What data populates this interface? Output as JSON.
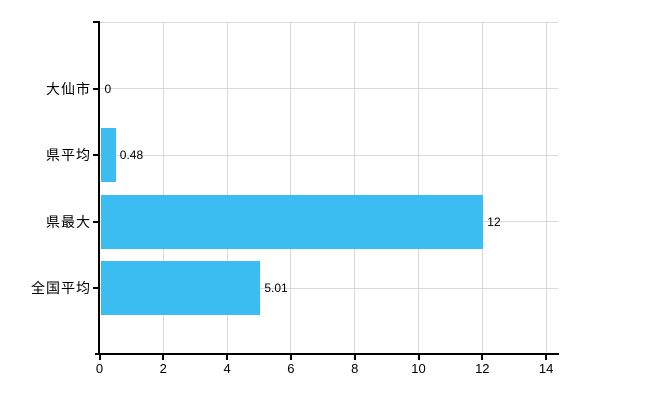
{
  "chart_data": {
    "type": "bar",
    "orientation": "horizontal",
    "title": "",
    "xlabel": "",
    "ylabel": "",
    "categories": [
      "大仙市",
      "県平均",
      "県最大",
      "全国平均"
    ],
    "values": [
      0,
      0.48,
      12,
      5.01
    ],
    "value_labels": [
      "0",
      "0.48",
      "12",
      "5.01"
    ],
    "x_ticks": [
      0,
      2,
      4,
      6,
      8,
      10,
      12,
      14
    ],
    "x_tick_labels": [
      "0",
      "2",
      "4",
      "6",
      "8",
      "10",
      "12",
      "14"
    ],
    "xlim": [
      0,
      14.4
    ],
    "grid": true,
    "legend": false,
    "colors": {
      "bar": "#3bbdf2",
      "grid": "#d9d9d9",
      "axis": "#000000",
      "text": "#000000",
      "background": "#ffffff"
    }
  }
}
